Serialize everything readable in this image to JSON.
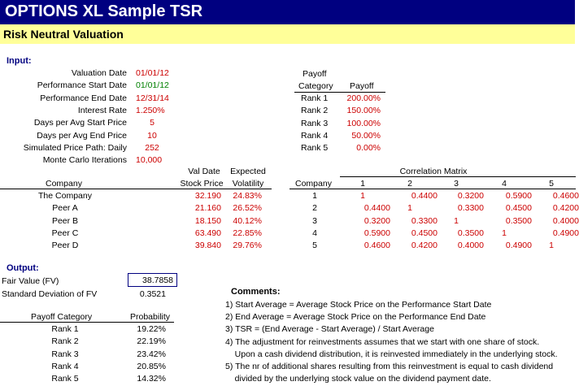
{
  "title": "OPTIONS XL Sample TSR",
  "subtitle": "Risk Neutral Valuation",
  "input": {
    "heading": "Input:",
    "rows": [
      {
        "label": "Valuation Date",
        "value": "01/01/12"
      },
      {
        "label": "Performance Start Date",
        "value": "01/01/12"
      },
      {
        "label": "Performance End Date",
        "value": "12/31/14"
      },
      {
        "label": "Interest Rate",
        "value": "1.250%"
      },
      {
        "label": "Days per Avg Start Price",
        "value": "5"
      },
      {
        "label": "Days per Avg End Price",
        "value": "10"
      },
      {
        "label": "Simulated Price Path: Daily",
        "value": "252"
      },
      {
        "label": "Monte Carlo Iterations",
        "value": "10,000"
      }
    ]
  },
  "payoff_table": {
    "header_top": "Payoff",
    "header_category": "Category",
    "header_payoff": "Payoff",
    "rows": [
      {
        "category": "Rank 1",
        "payoff": "200.00%"
      },
      {
        "category": "Rank 2",
        "payoff": "150.00%"
      },
      {
        "category": "Rank 3",
        "payoff": "100.00%"
      },
      {
        "category": "Rank 4",
        "payoff": "50.00%"
      },
      {
        "category": "Rank 5",
        "payoff": "0.00%"
      }
    ]
  },
  "company_table": {
    "header_company": "Company",
    "header_price_top": "Val Date",
    "header_price": "Stock Price",
    "header_vol_top": "Expected",
    "header_vol": "Volatility",
    "rows": [
      {
        "company": "The Company",
        "price": "32.190",
        "vol": "24.83%"
      },
      {
        "company": "Peer A",
        "price": "21.160",
        "vol": "26.52%"
      },
      {
        "company": "Peer B",
        "price": "18.150",
        "vol": "40.12%"
      },
      {
        "company": "Peer C",
        "price": "63.490",
        "vol": "22.85%"
      },
      {
        "company": "Peer D",
        "price": "39.840",
        "vol": "29.76%"
      }
    ]
  },
  "correlation": {
    "title": "Correlation Matrix",
    "header_company": "Company",
    "columns": [
      "1",
      "2",
      "3",
      "4",
      "5"
    ],
    "rows": [
      {
        "id": "1",
        "values": [
          "1",
          "0.4400",
          "0.3200",
          "0.5900",
          "0.4600"
        ]
      },
      {
        "id": "2",
        "values": [
          "0.4400",
          "1",
          "0.3300",
          "0.4500",
          "0.4200"
        ]
      },
      {
        "id": "3",
        "values": [
          "0.3200",
          "0.3300",
          "1",
          "0.3500",
          "0.4000"
        ]
      },
      {
        "id": "4",
        "values": [
          "0.5900",
          "0.4500",
          "0.3500",
          "1",
          "0.4900"
        ]
      },
      {
        "id": "5",
        "values": [
          "0.4600",
          "0.4200",
          "0.4000",
          "0.4900",
          "1"
        ]
      }
    ]
  },
  "output": {
    "heading": "Output:",
    "fv_label": "Fair Value (FV)",
    "fv_value": "38.7858",
    "sd_label": "Standard Deviation of FV",
    "sd_value": "0.3521"
  },
  "probability_table": {
    "header_category": "Payoff Category",
    "header_prob": "Probability",
    "rows": [
      {
        "category": "Rank 1",
        "prob": "19.22%"
      },
      {
        "category": "Rank 2",
        "prob": "22.19%"
      },
      {
        "category": "Rank 3",
        "prob": "23.42%"
      },
      {
        "category": "Rank 4",
        "prob": "20.85%"
      },
      {
        "category": "Rank 5",
        "prob": "14.32%"
      }
    ]
  },
  "comments": {
    "heading": "Comments:",
    "lines": [
      "1) Start Average = Average Stock Price on the Performance Start Date",
      "2) End Average = Average Stock Price on the Performance End Date",
      "3) TSR = (End Average - Start Average) / Start Average",
      "4) The adjustment for reinvestments assumes that we start with one share of stock.",
      "    Upon a cash dividend distribution, it is reinvested immediately in the underlying stock.",
      "5) The nr of additional shares resulting from this reinvestment is equal to cash dividend",
      "    divided by the underlying stock value on the dividend payment date."
    ]
  },
  "colors": {
    "title_bg": "#000080",
    "subtitle_bg": "#ffff99",
    "value_red": "#cc0000",
    "value_green": "#008000"
  }
}
